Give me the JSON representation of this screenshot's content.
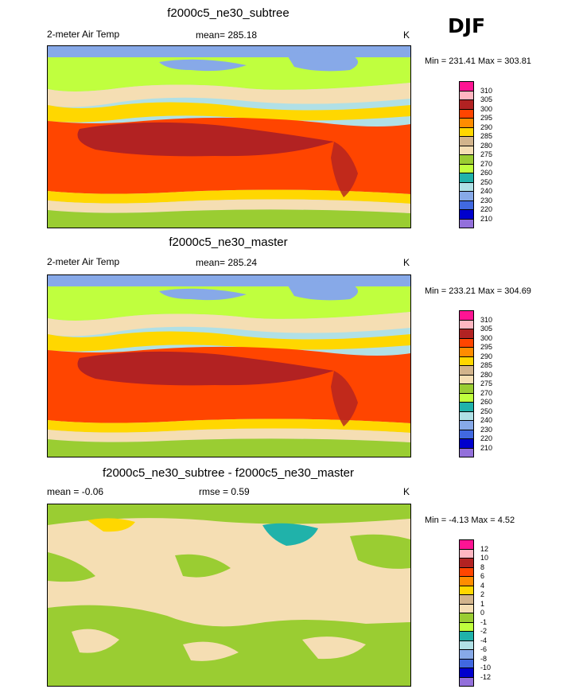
{
  "season": "DJF",
  "units": "K",
  "panels": [
    {
      "title": "f2000c5_ne30_subtree",
      "variable": "2-meter Air Temp",
      "stat_text": "mean= 285.18",
      "stat2_text": "",
      "minmax": "Min = 231.41 Max = 303.81",
      "type": "abs"
    },
    {
      "title": "f2000c5_ne30_master",
      "variable": "2-meter Air Temp",
      "stat_text": "mean= 285.24",
      "stat2_text": "",
      "minmax": "Min = 233.21 Max = 304.69",
      "type": "abs"
    },
    {
      "title": "f2000c5_ne30_subtree - f2000c5_ne30_master",
      "variable": "",
      "stat_text": "mean =  -0.06",
      "stat2_text": "rmse =   0.59",
      "minmax": "Min =  -4.13 Max =   4.52",
      "type": "diff"
    }
  ],
  "legend_abs": {
    "labels": [
      "310",
      "305",
      "300",
      "295",
      "290",
      "285",
      "280",
      "275",
      "270",
      "260",
      "250",
      "240",
      "230",
      "220",
      "210"
    ],
    "colors": [
      "#ff1493",
      "#ffb6c1",
      "#b22222",
      "#ff4500",
      "#ff8c00",
      "#ffd700",
      "#d2b48c",
      "#f5deb3",
      "#9acd32",
      "#c0ff3e",
      "#20b2aa",
      "#b0e0e6",
      "#87a9e8",
      "#4169e1",
      "#0000cd",
      "#9370db"
    ]
  },
  "legend_diff": {
    "labels": [
      "12",
      "10",
      "8",
      "6",
      "4",
      "2",
      "1",
      "0",
      "-1",
      "-2",
      "-4",
      "-6",
      "-8",
      "-10",
      "-12"
    ],
    "colors": [
      "#ff1493",
      "#ffb6c1",
      "#b22222",
      "#ff4500",
      "#ff8c00",
      "#ffd700",
      "#d2b48c",
      "#f5deb3",
      "#9acd32",
      "#c0ff3e",
      "#20b2aa",
      "#b0e0e6",
      "#87a9e8",
      "#4169e1",
      "#0000cd",
      "#9370db"
    ]
  }
}
